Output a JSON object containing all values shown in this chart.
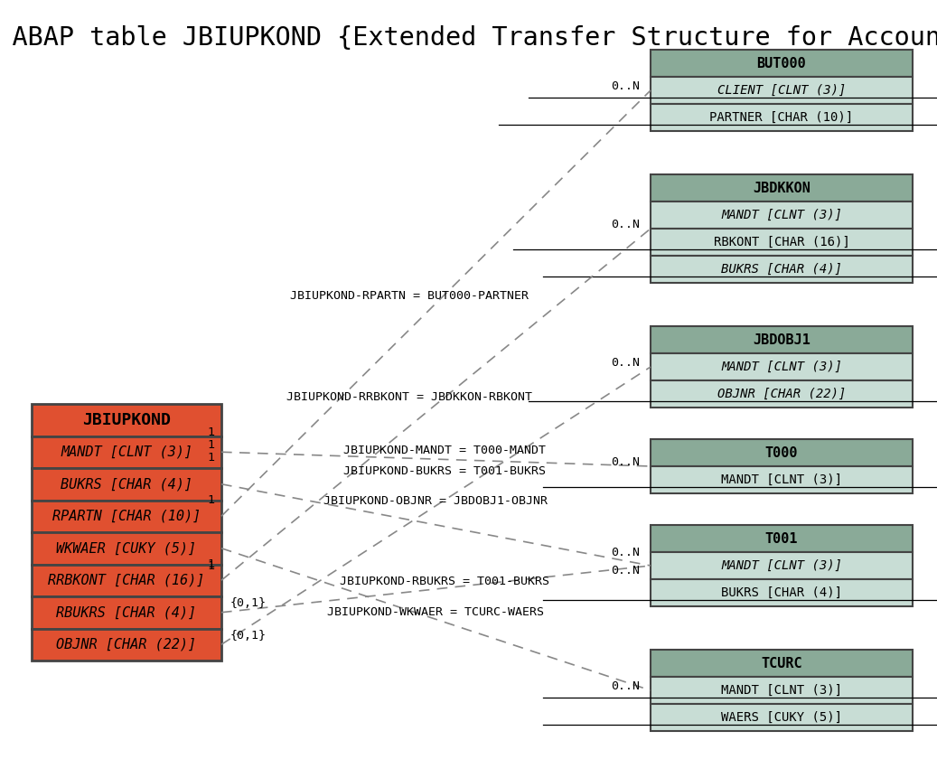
{
  "title": "SAP ABAP table JBIUPKOND {Extended Transfer Structure for Accounts}",
  "bg_color": "#ffffff",
  "main_table": {
    "name": "JBIUPKOND",
    "header_color": "#e05030",
    "row_color": "#e05030",
    "fields": [
      {
        "text": "MANDT [CLNT (3)]",
        "italic": true,
        "underline": false
      },
      {
        "text": "BUKRS [CHAR (4)]",
        "italic": true,
        "underline": false
      },
      {
        "text": "RPARTN [CHAR (10)]",
        "italic": true,
        "underline": false
      },
      {
        "text": "WKWAER [CUKY (5)]",
        "italic": true,
        "underline": false
      },
      {
        "text": "RRBKONT [CHAR (16)]",
        "italic": true,
        "underline": false
      },
      {
        "text": "RBUKRS [CHAR (4)]",
        "italic": true,
        "underline": false
      },
      {
        "text": "OBJNR [CHAR (22)]",
        "italic": true,
        "underline": false
      }
    ]
  },
  "related_tables": [
    {
      "name": "BUT000",
      "header_color": "#8aaa98",
      "row_color": "#c8ddd5",
      "fields": [
        {
          "text": "CLIENT [CLNT (3)]",
          "italic": true,
          "underline": true
        },
        {
          "text": "PARTNER [CHAR (10)]",
          "italic": false,
          "underline": true
        }
      ]
    },
    {
      "name": "JBDKKON",
      "header_color": "#8aaa98",
      "row_color": "#c8ddd5",
      "fields": [
        {
          "text": "MANDT [CLNT (3)]",
          "italic": true,
          "underline": false
        },
        {
          "text": "RBKONT [CHAR (16)]",
          "italic": false,
          "underline": true
        },
        {
          "text": "BUKRS [CHAR (4)]",
          "italic": true,
          "underline": true
        }
      ]
    },
    {
      "name": "JBDOBJ1",
      "header_color": "#8aaa98",
      "row_color": "#c8ddd5",
      "fields": [
        {
          "text": "MANDT [CLNT (3)]",
          "italic": true,
          "underline": false
        },
        {
          "text": "OBJNR [CHAR (22)]",
          "italic": true,
          "underline": true
        }
      ]
    },
    {
      "name": "T000",
      "header_color": "#8aaa98",
      "row_color": "#c8ddd5",
      "fields": [
        {
          "text": "MANDT [CLNT (3)]",
          "italic": false,
          "underline": true
        }
      ]
    },
    {
      "name": "T001",
      "header_color": "#8aaa98",
      "row_color": "#c8ddd5",
      "fields": [
        {
          "text": "MANDT [CLNT (3)]",
          "italic": true,
          "underline": false
        },
        {
          "text": "BUKRS [CHAR (4)]",
          "italic": false,
          "underline": true
        }
      ]
    },
    {
      "name": "TCURC",
      "header_color": "#8aaa98",
      "row_color": "#c8ddd5",
      "fields": [
        {
          "text": "MANDT [CLNT (3)]",
          "italic": false,
          "underline": true
        },
        {
          "text": "WAERS [CUKY (5)]",
          "italic": false,
          "underline": true
        }
      ]
    }
  ]
}
